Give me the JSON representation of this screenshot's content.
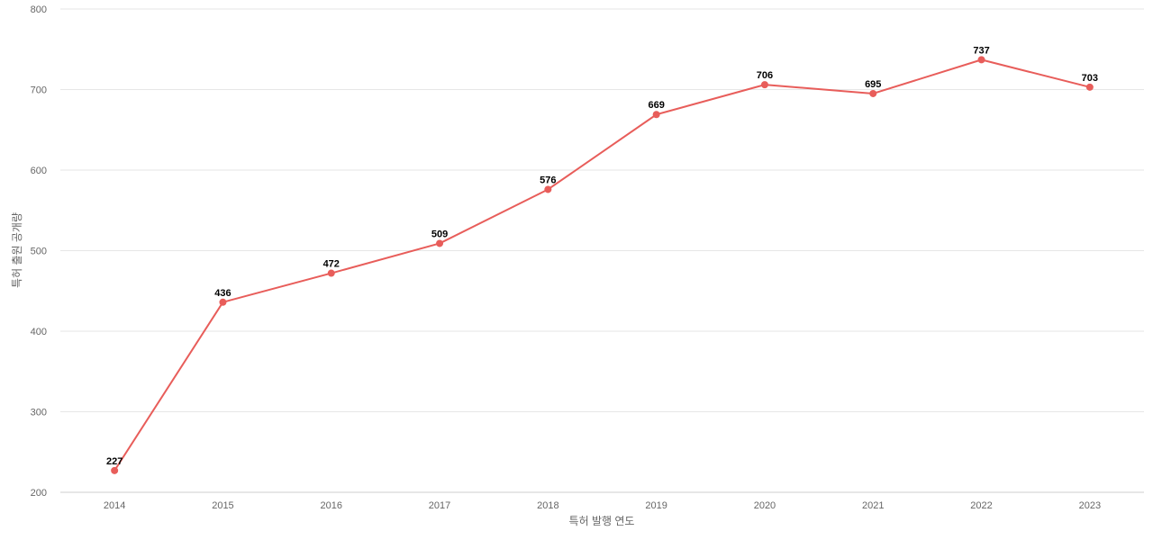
{
  "chart_data": {
    "type": "line",
    "categories": [
      "2014",
      "2015",
      "2016",
      "2017",
      "2018",
      "2019",
      "2020",
      "2021",
      "2022",
      "2023"
    ],
    "series": [
      {
        "values": [
          227,
          436,
          472,
          509,
          576,
          669,
          706,
          695,
          737,
          703
        ],
        "color": "#e85d5a"
      }
    ],
    "xlabel": "특허 발행 연도",
    "ylabel": "특허 출원 공개량",
    "ylim": [
      200,
      800
    ],
    "yticks": [
      200,
      300,
      400,
      500,
      600,
      700,
      800
    ],
    "grid": true,
    "data_labels": true
  }
}
